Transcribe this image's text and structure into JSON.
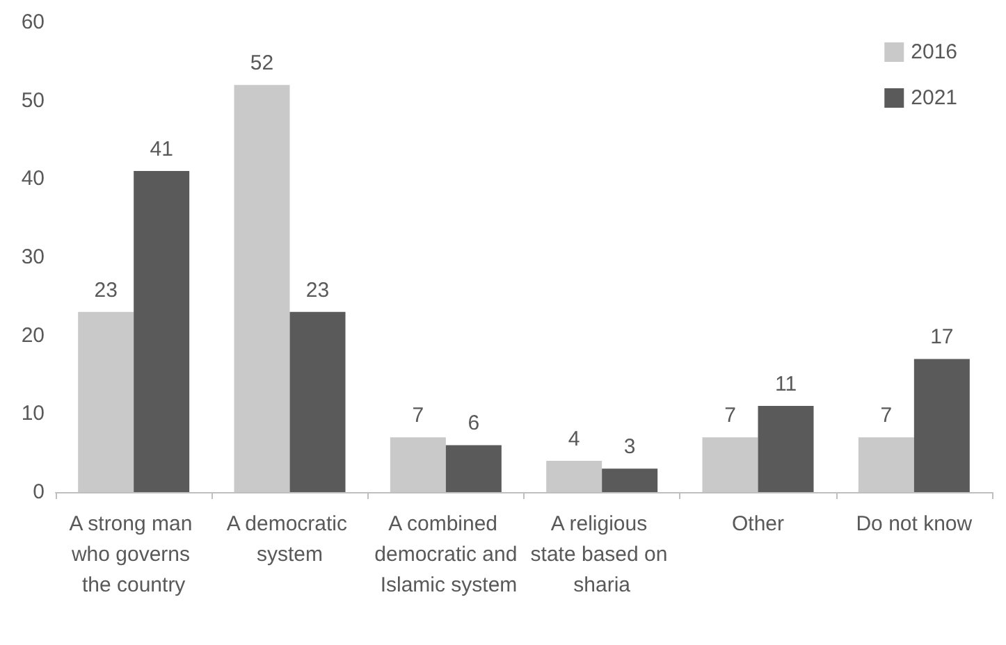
{
  "chart_data": {
    "type": "bar",
    "categories": [
      "A strong man who governs the country",
      "A democratic system",
      "A combined democratic and Islamic system",
      "A religious state based on sharia",
      "Other",
      "Do not know"
    ],
    "series": [
      {
        "name": "2016",
        "color": "#c9c9c9",
        "values": [
          23,
          52,
          7,
          4,
          7,
          7
        ]
      },
      {
        "name": "2021",
        "color": "#5a5a5a",
        "values": [
          41,
          23,
          6,
          3,
          11,
          17
        ]
      }
    ],
    "ylim": [
      0,
      60
    ],
    "yticks": [
      0,
      10,
      20,
      30,
      40,
      50,
      60
    ],
    "grid": false,
    "legend": "top right",
    "data_labels": true
  }
}
